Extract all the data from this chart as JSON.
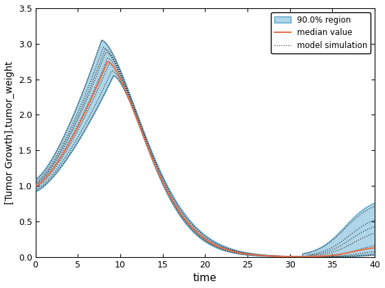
{
  "xlabel": "time",
  "ylabel": "[Tumor Growth].tumor_weight",
  "xlim": [
    0,
    40
  ],
  "ylim": [
    0,
    3.5
  ],
  "xticks": [
    0,
    5,
    10,
    15,
    20,
    25,
    30,
    35,
    40
  ],
  "yticks": [
    0,
    0.5,
    1.0,
    1.5,
    2.0,
    2.5,
    3.0,
    3.5
  ],
  "region_color": "#aed6e8",
  "region_edge_color": "#5ba3c9",
  "median_color": "#e8704a",
  "sim_color": "#333333",
  "legend_region": "90.0% region",
  "legend_median": "median value",
  "legend_sim": "model simulation",
  "figsize": [
    5.6,
    4.2
  ],
  "dpi": 100
}
